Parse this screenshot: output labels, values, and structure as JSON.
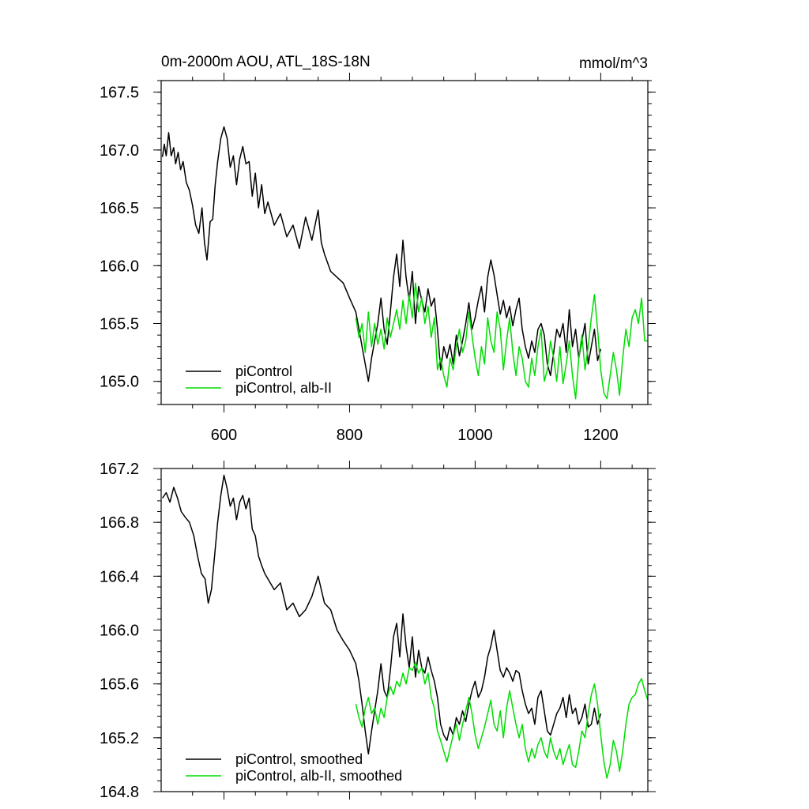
{
  "chart_data": [
    {
      "type": "line",
      "title_left": "0m-2000m AOU, ATL_18S-18N",
      "title_right": "mmol/m^3",
      "xlabel": "",
      "ylabel": "",
      "xlim": [
        500,
        1275
      ],
      "ylim": [
        164.8,
        167.6
      ],
      "xticks": [
        600,
        800,
        1000,
        1200
      ],
      "xtick_labels": [
        "600",
        "800",
        "1000",
        "1200"
      ],
      "yticks": [
        165.0,
        165.5,
        166.0,
        166.5,
        167.0,
        167.5
      ],
      "ytick_labels": [
        "165.0",
        "165.5",
        "166.0",
        "166.5",
        "167.0",
        "167.5"
      ],
      "legend_position": "bottom-left",
      "grid": false,
      "series": [
        {
          "name": "piControl",
          "color": "#000000",
          "x": [
            502,
            505,
            508,
            512,
            516,
            520,
            523,
            527,
            531,
            535,
            540,
            545,
            550,
            555,
            560,
            565,
            569,
            573,
            578,
            582,
            586,
            590,
            595,
            600,
            605,
            610,
            615,
            620,
            625,
            630,
            635,
            640,
            645,
            650,
            655,
            660,
            665,
            670,
            680,
            690,
            700,
            710,
            720,
            730,
            740,
            750,
            755,
            760,
            770,
            780,
            790,
            800,
            810,
            815,
            820,
            825,
            830,
            835,
            840,
            845,
            850,
            855,
            860,
            865,
            870,
            875,
            880,
            885,
            890,
            895,
            900,
            905,
            910,
            915,
            920,
            925,
            930,
            935,
            940,
            945,
            950,
            955,
            960,
            965,
            970,
            975,
            980,
            985,
            990,
            995,
            1000,
            1005,
            1010,
            1015,
            1020,
            1025,
            1030,
            1035,
            1040,
            1045,
            1050,
            1055,
            1060,
            1065,
            1070,
            1075,
            1080,
            1085,
            1090,
            1095,
            1100,
            1105,
            1110,
            1115,
            1120,
            1125,
            1130,
            1135,
            1140,
            1145,
            1150,
            1155,
            1160,
            1165,
            1170,
            1175,
            1180,
            1185,
            1190,
            1195,
            1200
          ],
          "values": [
            166.94,
            167.05,
            166.95,
            167.15,
            166.95,
            167.02,
            166.88,
            166.98,
            166.83,
            166.9,
            166.72,
            166.65,
            166.52,
            166.35,
            166.28,
            166.5,
            166.2,
            166.05,
            166.38,
            166.4,
            166.7,
            166.9,
            167.1,
            167.2,
            167.1,
            166.85,
            166.95,
            166.7,
            166.92,
            167.03,
            166.88,
            166.9,
            166.6,
            166.8,
            166.5,
            166.7,
            166.45,
            166.55,
            166.35,
            166.45,
            166.25,
            166.35,
            166.15,
            166.42,
            166.22,
            166.48,
            166.2,
            166.1,
            165.95,
            165.9,
            165.85,
            165.72,
            165.6,
            165.45,
            165.3,
            165.15,
            165.0,
            165.2,
            165.35,
            165.5,
            165.72,
            165.45,
            165.32,
            165.6,
            165.9,
            166.1,
            165.82,
            166.22,
            165.9,
            165.7,
            165.95,
            165.5,
            165.82,
            165.7,
            165.6,
            165.8,
            165.65,
            165.72,
            165.45,
            165.1,
            165.3,
            165.2,
            165.32,
            165.15,
            165.4,
            165.22,
            165.35,
            165.5,
            165.68,
            165.45,
            165.55,
            165.7,
            165.82,
            165.6,
            165.9,
            166.05,
            165.92,
            165.75,
            165.58,
            165.7,
            165.55,
            165.65,
            165.48,
            165.62,
            165.72,
            165.45,
            165.3,
            165.2,
            165.35,
            165.25,
            165.45,
            165.5,
            165.4,
            165.15,
            165.05,
            165.25,
            165.45,
            165.38,
            165.5,
            165.25,
            165.62,
            165.3,
            165.45,
            165.2,
            165.35,
            165.5,
            165.15,
            165.3,
            165.45,
            165.18,
            165.28
          ]
        },
        {
          "name": "piControl, alb-II",
          "color": "#00dd00",
          "x": [
            810,
            815,
            820,
            825,
            830,
            835,
            840,
            845,
            850,
            855,
            860,
            865,
            870,
            875,
            880,
            885,
            890,
            895,
            900,
            905,
            910,
            915,
            920,
            925,
            930,
            935,
            940,
            945,
            950,
            955,
            960,
            965,
            970,
            975,
            980,
            985,
            990,
            995,
            1000,
            1005,
            1010,
            1015,
            1020,
            1025,
            1030,
            1035,
            1040,
            1045,
            1050,
            1055,
            1060,
            1065,
            1070,
            1075,
            1080,
            1085,
            1090,
            1095,
            1100,
            1105,
            1110,
            1115,
            1120,
            1125,
            1130,
            1135,
            1140,
            1145,
            1150,
            1155,
            1160,
            1165,
            1170,
            1175,
            1180,
            1185,
            1190,
            1195,
            1200,
            1205,
            1210,
            1215,
            1220,
            1225,
            1230,
            1235,
            1240,
            1245,
            1250,
            1255,
            1260,
            1265,
            1270,
            1275
          ],
          "values": [
            165.55,
            165.38,
            165.5,
            165.25,
            165.6,
            165.3,
            165.5,
            165.32,
            165.45,
            165.28,
            165.55,
            165.38,
            165.5,
            165.62,
            165.45,
            165.7,
            165.5,
            165.75,
            165.55,
            165.85,
            165.6,
            165.72,
            165.5,
            165.65,
            165.38,
            165.55,
            165.1,
            165.2,
            165.05,
            164.95,
            165.2,
            165.1,
            165.3,
            165.45,
            165.25,
            165.35,
            165.6,
            165.4,
            165.2,
            165.05,
            165.3,
            165.15,
            165.55,
            165.35,
            165.25,
            165.6,
            165.45,
            165.1,
            165.35,
            165.55,
            165.25,
            165.05,
            165.3,
            165.2,
            165.0,
            164.95,
            165.2,
            165.05,
            165.3,
            165.45,
            165.0,
            165.1,
            165.35,
            165.2,
            165.0,
            165.3,
            164.98,
            165.15,
            165.35,
            165.05,
            164.85,
            165.2,
            165.4,
            165.1,
            165.3,
            165.55,
            165.75,
            165.45,
            165.1,
            164.9,
            164.85,
            165.05,
            165.25,
            165.1,
            164.88,
            165.2,
            165.45,
            165.3,
            165.55,
            165.62,
            165.5,
            165.72,
            165.35,
            165.35
          ]
        }
      ]
    },
    {
      "type": "line",
      "title_left": "",
      "title_right": "",
      "xlabel": "",
      "ylabel": "",
      "xlim": [
        500,
        1275
      ],
      "ylim": [
        164.8,
        167.2
      ],
      "xticks": [
        600,
        800,
        1000,
        1200
      ],
      "xtick_labels": [],
      "yticks": [
        164.8,
        165.2,
        165.6,
        166.0,
        166.4,
        166.8,
        167.2
      ],
      "ytick_labels": [
        "164.8",
        "165.2",
        "165.6",
        "166.0",
        "166.4",
        "166.8",
        "167.2"
      ],
      "legend_position": "bottom-left",
      "grid": false,
      "series": [
        {
          "name": "piControl, smoothed",
          "color": "#000000",
          "x": [
            502,
            508,
            514,
            520,
            526,
            532,
            538,
            545,
            552,
            558,
            564,
            570,
            575,
            580,
            585,
            590,
            595,
            600,
            605,
            610,
            615,
            620,
            625,
            630,
            635,
            640,
            645,
            650,
            655,
            660,
            665,
            670,
            680,
            690,
            700,
            710,
            720,
            730,
            740,
            750,
            755,
            760,
            770,
            780,
            790,
            800,
            810,
            815,
            820,
            825,
            830,
            835,
            840,
            845,
            850,
            855,
            860,
            865,
            870,
            875,
            880,
            885,
            890,
            895,
            900,
            905,
            910,
            915,
            920,
            925,
            930,
            935,
            940,
            945,
            950,
            955,
            960,
            965,
            970,
            975,
            980,
            985,
            990,
            995,
            1000,
            1005,
            1010,
            1015,
            1020,
            1025,
            1030,
            1035,
            1040,
            1045,
            1050,
            1055,
            1060,
            1065,
            1070,
            1075,
            1080,
            1085,
            1090,
            1095,
            1100,
            1105,
            1110,
            1115,
            1120,
            1125,
            1130,
            1135,
            1140,
            1145,
            1150,
            1155,
            1160,
            1165,
            1170,
            1175,
            1180,
            1185,
            1190,
            1195,
            1200
          ],
          "values": [
            166.98,
            167.02,
            166.95,
            167.06,
            166.98,
            166.88,
            166.84,
            166.8,
            166.7,
            166.55,
            166.42,
            166.38,
            166.2,
            166.3,
            166.55,
            166.8,
            167.0,
            167.15,
            167.05,
            166.92,
            166.98,
            166.82,
            166.95,
            167.0,
            166.9,
            166.98,
            166.75,
            166.7,
            166.55,
            166.48,
            166.42,
            166.38,
            166.3,
            166.35,
            166.15,
            166.2,
            166.1,
            166.15,
            166.25,
            166.4,
            166.3,
            166.2,
            166.15,
            166.0,
            165.92,
            165.85,
            165.75,
            165.62,
            165.45,
            165.25,
            165.08,
            165.25,
            165.4,
            165.55,
            165.75,
            165.55,
            165.5,
            165.7,
            165.95,
            166.05,
            165.8,
            166.12,
            165.88,
            165.72,
            165.95,
            165.65,
            165.85,
            165.72,
            165.68,
            165.8,
            165.7,
            165.62,
            165.5,
            165.3,
            165.22,
            165.18,
            165.28,
            165.22,
            165.35,
            165.3,
            165.4,
            165.32,
            165.45,
            165.55,
            165.62,
            165.5,
            165.55,
            165.65,
            165.8,
            165.88,
            166.0,
            165.85,
            165.7,
            165.65,
            165.72,
            165.68,
            165.62,
            165.7,
            165.68,
            165.55,
            165.45,
            165.38,
            165.42,
            165.3,
            165.5,
            165.55,
            165.4,
            165.25,
            165.22,
            165.3,
            165.38,
            165.42,
            165.5,
            165.35,
            165.52,
            165.38,
            165.42,
            165.3,
            165.35,
            165.45,
            165.28,
            165.3,
            165.42,
            165.3,
            165.38
          ]
        },
        {
          "name": "piControl, alb-II, smoothed",
          "color": "#00dd00",
          "x": [
            810,
            815,
            820,
            825,
            830,
            835,
            840,
            845,
            850,
            855,
            860,
            865,
            870,
            875,
            880,
            885,
            890,
            895,
            900,
            905,
            910,
            915,
            920,
            925,
            930,
            935,
            940,
            945,
            950,
            955,
            960,
            965,
            970,
            975,
            980,
            985,
            990,
            995,
            1000,
            1005,
            1010,
            1015,
            1020,
            1025,
            1030,
            1035,
            1040,
            1045,
            1050,
            1055,
            1060,
            1065,
            1070,
            1075,
            1080,
            1085,
            1090,
            1095,
            1100,
            1105,
            1110,
            1115,
            1120,
            1125,
            1130,
            1135,
            1140,
            1145,
            1150,
            1155,
            1160,
            1165,
            1170,
            1175,
            1180,
            1185,
            1190,
            1195,
            1200,
            1205,
            1210,
            1215,
            1220,
            1225,
            1230,
            1235,
            1240,
            1245,
            1250,
            1255,
            1260,
            1265,
            1270,
            1275
          ],
          "values": [
            165.45,
            165.35,
            165.28,
            165.42,
            165.5,
            165.38,
            165.42,
            165.3,
            165.42,
            165.35,
            165.5,
            165.58,
            165.52,
            165.62,
            165.58,
            165.68,
            165.6,
            165.72,
            165.7,
            165.76,
            165.68,
            165.72,
            165.6,
            165.68,
            165.5,
            165.42,
            165.25,
            165.18,
            165.1,
            165.02,
            165.12,
            165.22,
            165.3,
            165.18,
            165.3,
            165.4,
            165.5,
            165.38,
            165.22,
            165.12,
            165.2,
            165.28,
            165.38,
            165.48,
            165.3,
            165.25,
            165.4,
            165.2,
            165.42,
            165.55,
            165.42,
            165.3,
            165.2,
            165.3,
            165.12,
            165.02,
            165.12,
            165.05,
            165.15,
            165.2,
            165.1,
            165.05,
            165.2,
            165.1,
            165.04,
            165.12,
            165.0,
            165.08,
            165.15,
            165.0,
            164.98,
            165.1,
            165.25,
            165.2,
            165.38,
            165.52,
            165.6,
            165.45,
            165.22,
            165.02,
            164.9,
            165.0,
            165.18,
            165.1,
            164.95,
            165.1,
            165.3,
            165.45,
            165.5,
            165.52,
            165.6,
            165.64,
            165.55,
            165.48
          ]
        }
      ]
    }
  ]
}
